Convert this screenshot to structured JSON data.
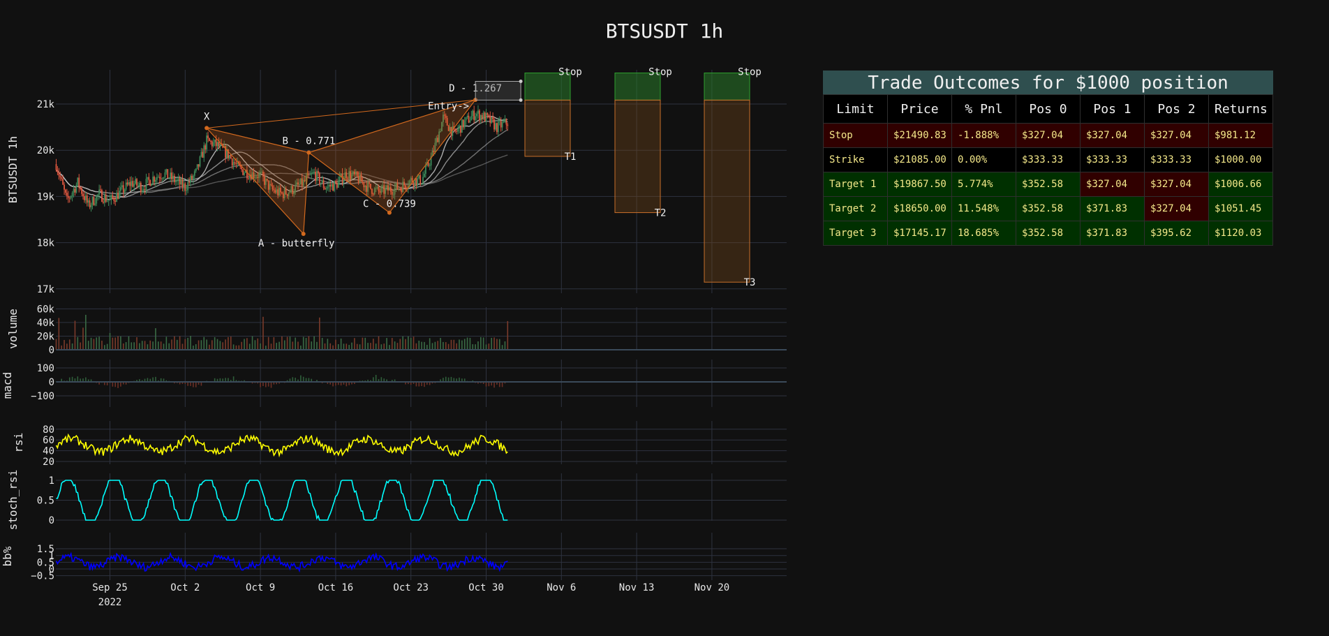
{
  "page_title": "BTSUSDT 1h",
  "chart_data": [
    {
      "type": "line",
      "panel": "price",
      "ylabel": "BTSUSDT 1h",
      "yticks": [
        "21k",
        "20k",
        "19k",
        "18k",
        "17k"
      ],
      "ylim": [
        17000,
        21800
      ],
      "xticks": [
        "Sep 25",
        "Oct 2",
        "Oct 9",
        "Oct 16",
        "Oct 23",
        "Oct 30",
        "Nov 6",
        "Nov 13",
        "Nov 20"
      ],
      "xtick_year": "2022",
      "close_series_approx": [
        {
          "x": "2022-09-20",
          "y": 19700
        },
        {
          "x": "2022-09-21",
          "y": 18900
        },
        {
          "x": "2022-09-22",
          "y": 19300
        },
        {
          "x": "2022-09-23",
          "y": 18800
        },
        {
          "x": "2022-09-24",
          "y": 19050
        },
        {
          "x": "2022-09-25",
          "y": 18900
        },
        {
          "x": "2022-09-26",
          "y": 19100
        },
        {
          "x": "2022-09-27",
          "y": 19300
        },
        {
          "x": "2022-09-28",
          "y": 19200
        },
        {
          "x": "2022-09-29",
          "y": 19400
        },
        {
          "x": "2022-09-30",
          "y": 19500
        },
        {
          "x": "2022-10-01",
          "y": 19350
        },
        {
          "x": "2022-10-02",
          "y": 19200
        },
        {
          "x": "2022-10-03",
          "y": 19500
        },
        {
          "x": "2022-10-04",
          "y": 20200
        },
        {
          "x": "2022-10-05",
          "y": 20100
        },
        {
          "x": "2022-10-06",
          "y": 19900
        },
        {
          "x": "2022-10-07",
          "y": 19600
        },
        {
          "x": "2022-10-08",
          "y": 19500
        },
        {
          "x": "2022-10-09",
          "y": 19450
        },
        {
          "x": "2022-10-10",
          "y": 19150
        },
        {
          "x": "2022-10-11",
          "y": 19050
        },
        {
          "x": "2022-10-12",
          "y": 19150
        },
        {
          "x": "2022-10-13",
          "y": 19300
        },
        {
          "x": "2022-10-14",
          "y": 19500
        },
        {
          "x": "2022-10-15",
          "y": 19200
        },
        {
          "x": "2022-10-16",
          "y": 19250
        },
        {
          "x": "2022-10-17",
          "y": 19500
        },
        {
          "x": "2022-10-18",
          "y": 19400
        },
        {
          "x": "2022-10-19",
          "y": 19200
        },
        {
          "x": "2022-10-20",
          "y": 19100
        },
        {
          "x": "2022-10-21",
          "y": 19150
        },
        {
          "x": "2022-10-22",
          "y": 19200
        },
        {
          "x": "2022-10-23",
          "y": 19350
        },
        {
          "x": "2022-10-24",
          "y": 19350
        },
        {
          "x": "2022-10-25",
          "y": 19900
        },
        {
          "x": "2022-10-26",
          "y": 20700
        },
        {
          "x": "2022-10-27",
          "y": 20350
        },
        {
          "x": "2022-10-28",
          "y": 20600
        },
        {
          "x": "2022-10-29",
          "y": 20800
        },
        {
          "x": "2022-10-30",
          "y": 20700
        },
        {
          "x": "2022-10-31",
          "y": 20500
        },
        {
          "x": "2022-11-01",
          "y": 20600
        }
      ],
      "harmonic_pattern": {
        "points": [
          {
            "label": "X",
            "x": "2022-10-04",
            "y": 20480
          },
          {
            "label": "A - butterfly",
            "x": "2022-10-13",
            "y": 18190
          },
          {
            "label": "B - 0.771",
            "x": "2022-10-13 12:00",
            "y": 19950
          },
          {
            "label": "C - 0.739",
            "x": "2022-10-21",
            "y": 18650
          },
          {
            "label": "D - 1.267",
            "x": "2022-10-29",
            "y": 21090
          }
        ],
        "entry_label": "Entry->",
        "entry_value": 21085.0,
        "stop_value": 21490.83
      },
      "targets": [
        {
          "label": "T1",
          "stop_label": "Stop",
          "value": 19867.5
        },
        {
          "label": "T2",
          "stop_label": "Stop",
          "value": 18650.0
        },
        {
          "label": "T3",
          "stop_label": "Stop",
          "value": 17145.17
        }
      ],
      "colors": {
        "up": "#3d8b5a",
        "down": "#e0573f",
        "pattern": "#d2691e",
        "ma": "#bfbfbf"
      }
    },
    {
      "type": "bar",
      "panel": "volume",
      "ylabel": "volume",
      "yticks": [
        "60k",
        "40k",
        "20k",
        "0"
      ],
      "ylim": [
        0,
        65000
      ]
    },
    {
      "type": "bar",
      "panel": "macd",
      "ylabel": "macd",
      "yticks": [
        "100",
        "0",
        "−100"
      ],
      "ylim": [
        -150,
        120
      ]
    },
    {
      "type": "line",
      "panel": "rsi",
      "ylabel": "rsi",
      "yticks": [
        "80",
        "60",
        "40",
        "20"
      ],
      "ylim": [
        15,
        95
      ],
      "color": "#ffff00"
    },
    {
      "type": "line",
      "panel": "stoch_rsi",
      "ylabel": "stoch_rsi",
      "yticks": [
        "1",
        "0.5",
        "0"
      ],
      "ylim": [
        0,
        1.1
      ],
      "color": "#00ffff"
    },
    {
      "type": "line",
      "panel": "bb%",
      "ylabel": "bb%",
      "yticks": [
        "1.5",
        "1",
        "0.5",
        "0",
        "−0.5"
      ],
      "ylim": [
        -0.5,
        1.6
      ],
      "color": "#0000ff"
    },
    {
      "type": "table",
      "title": "Trade Outcomes for $1000 position",
      "columns": [
        "Limit",
        "Price",
        "% Pnl",
        "Pos 0",
        "Pos 1",
        "Pos 2",
        "Returns"
      ],
      "rows": [
        {
          "cells": [
            "Stop",
            "$21490.83",
            "-1.888%",
            "$327.04",
            "$327.04",
            "$327.04",
            "$981.12"
          ],
          "colors": [
            "red",
            "red",
            "red",
            "red",
            "red",
            "red",
            "red"
          ]
        },
        {
          "cells": [
            "Strike",
            "$21085.00",
            "0.00%",
            "$333.33",
            "$333.33",
            "$333.33",
            "$1000.00"
          ],
          "colors": [
            "black",
            "black",
            "black",
            "black",
            "black",
            "black",
            "black"
          ]
        },
        {
          "cells": [
            "Target 1",
            "$19867.50",
            "5.774%",
            "$352.58",
            "$327.04",
            "$327.04",
            "$1006.66"
          ],
          "colors": [
            "green",
            "green",
            "green",
            "green",
            "red",
            "red",
            "green"
          ]
        },
        {
          "cells": [
            "Target 2",
            "$18650.00",
            "11.548%",
            "$352.58",
            "$371.83",
            "$327.04",
            "$1051.45"
          ],
          "colors": [
            "green",
            "green",
            "green",
            "green",
            "green",
            "red",
            "green"
          ]
        },
        {
          "cells": [
            "Target 3",
            "$17145.17",
            "18.685%",
            "$352.58",
            "$371.83",
            "$395.62",
            "$1120.03"
          ],
          "colors": [
            "green",
            "green",
            "green",
            "green",
            "green",
            "green",
            "green"
          ]
        }
      ]
    }
  ]
}
